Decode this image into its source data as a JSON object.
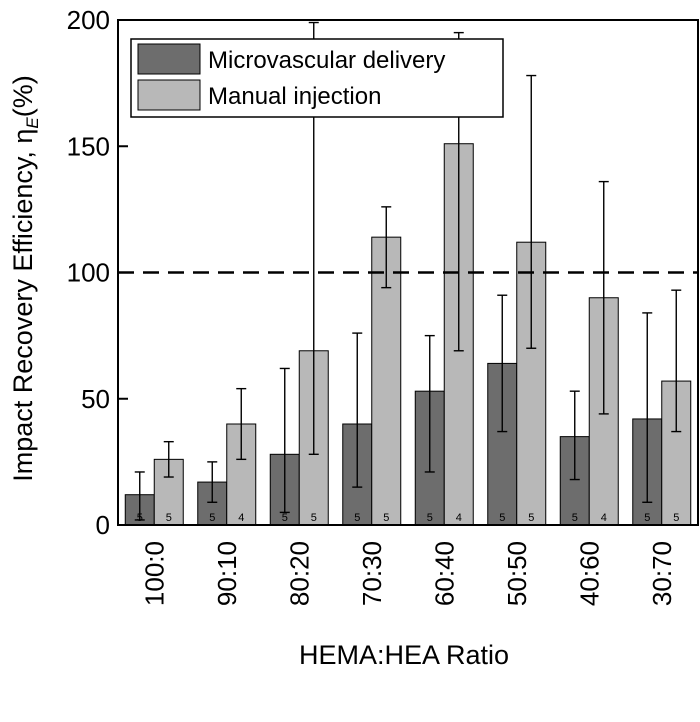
{
  "chart_data": {
    "type": "bar",
    "title": "",
    "xlabel": "HEMA:HEA Ratio",
    "ylabel": "Impact Recovery Efficiency, η",
    "ylabel_subscript": "E",
    "ylabel_unit": "(%)",
    "ylim": [
      0,
      200
    ],
    "yticks": [
      0,
      50,
      100,
      150,
      200
    ],
    "grid": false,
    "legend": "top-left",
    "reference_line": {
      "y": 100,
      "style": "dashed"
    },
    "categories": [
      "100:0",
      "90:10",
      "80:20",
      "70:30",
      "60:40",
      "50:50",
      "40:60",
      "30:70"
    ],
    "series": [
      {
        "name": "Microvascular delivery",
        "color": "#6d6d6d",
        "values": [
          12,
          17,
          28,
          40,
          53,
          64,
          35,
          42
        ],
        "error_low": [
          2,
          9,
          5,
          15,
          21,
          37,
          18,
          9
        ],
        "error_high": [
          21,
          25,
          62,
          76,
          75,
          91,
          53,
          84
        ],
        "n": [
          "5",
          "5",
          "5",
          "5",
          "5",
          "5",
          "5",
          "5"
        ]
      },
      {
        "name": "Manual injection",
        "color": "#b8b8b8",
        "values": [
          26,
          40,
          69,
          114,
          151,
          112,
          90,
          57
        ],
        "error_low": [
          19,
          26,
          28,
          94,
          69,
          70,
          44,
          37
        ],
        "error_high": [
          33,
          54,
          199,
          126,
          195,
          178,
          136,
          93
        ],
        "n": [
          "5",
          "4",
          "5",
          "5",
          "4",
          "5",
          "4",
          "5"
        ]
      }
    ]
  }
}
